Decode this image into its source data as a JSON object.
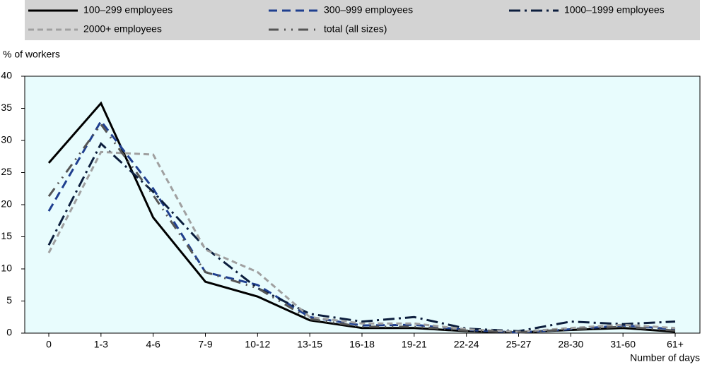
{
  "chart_data": {
    "type": "line",
    "y_label": "% of workers",
    "x_label": "Number of days",
    "categories": [
      "0",
      "1-3",
      "4-6",
      "7-9",
      "10-12",
      "13-15",
      "16-18",
      "19-21",
      "22-24",
      "25-27",
      "28-30",
      "31-60",
      "61+"
    ],
    "series": [
      {
        "name": "100–299 employees",
        "color": "#000000",
        "dash": "none",
        "values": [
          26.5,
          35.8,
          18,
          8,
          5.7,
          2,
          0.8,
          0.8,
          0.3,
          0.1,
          0.5,
          0.8,
          0.2
        ]
      },
      {
        "name": "300–999 employees",
        "color": "#1f3f8f",
        "dash": "12,7",
        "values": [
          19,
          33,
          22.5,
          9.5,
          7.5,
          2.5,
          1.2,
          1.3,
          0.5,
          0.1,
          0.6,
          1.2,
          0.6
        ]
      },
      {
        "name": "1000–1999 employees",
        "color": "#0c1e3d",
        "dash": "16,6,3,6",
        "values": [
          13.7,
          29.5,
          22,
          13.3,
          7,
          3,
          1.8,
          2.5,
          0.7,
          0.3,
          1.8,
          1.4,
          1.8
        ]
      },
      {
        "name": "2000+ employees",
        "color": "#a0a0a0",
        "dash": "8,5",
        "values": [
          12.5,
          28.2,
          27.8,
          13,
          9.5,
          2.5,
          1.5,
          1.5,
          0.6,
          0.2,
          0.8,
          1.3,
          0.8
        ]
      },
      {
        "name": "total (all sizes)",
        "color": "#555555",
        "dash": "14,8,2,8,2,8",
        "values": [
          21.3,
          32.5,
          21.5,
          9.5,
          7,
          2.2,
          1,
          1,
          0.4,
          0.1,
          0.6,
          1,
          0.4
        ]
      }
    ],
    "ylim": [
      0,
      40
    ],
    "yticks": [
      0,
      5,
      10,
      15,
      20,
      25,
      30,
      35,
      40
    ],
    "plot_background": "#e8fcfd",
    "legend_background": "#d3d3d3"
  }
}
